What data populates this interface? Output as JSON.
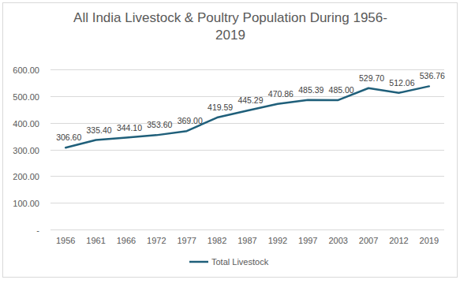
{
  "chart_data": {
    "type": "line",
    "title": "All India Livestock & Poultry Population During 1956-2019",
    "categories": [
      "1956",
      "1961",
      "1966",
      "1972",
      "1977",
      "1982",
      "1987",
      "1992",
      "1997",
      "2003",
      "2007",
      "2012",
      "2019"
    ],
    "series": [
      {
        "name": "Total Livestock",
        "color": "#1F5F7A",
        "values": [
          306.6,
          335.4,
          344.1,
          353.6,
          369.0,
          419.59,
          445.29,
          470.86,
          485.39,
          485.0,
          529.7,
          512.06,
          536.76
        ],
        "value_labels": [
          "306.60",
          "335.40",
          "344.10",
          "353.60",
          "369.00",
          "419.59",
          "445.29",
          "470.86",
          "485.39",
          "485.00",
          "529.70",
          "512.06",
          "536.76"
        ]
      }
    ],
    "ylim": [
      0,
      600
    ],
    "yticks": [
      {
        "value": 0,
        "label": "-"
      },
      {
        "value": 100,
        "label": "100.00"
      },
      {
        "value": 200,
        "label": "200.00"
      },
      {
        "value": 300,
        "label": "300.00"
      },
      {
        "value": 400,
        "label": "400.00"
      },
      {
        "value": 500,
        "label": "500.00"
      },
      {
        "value": 600,
        "label": "600.00"
      }
    ],
    "grid": true,
    "data_labels": true,
    "legend": "bottom"
  }
}
